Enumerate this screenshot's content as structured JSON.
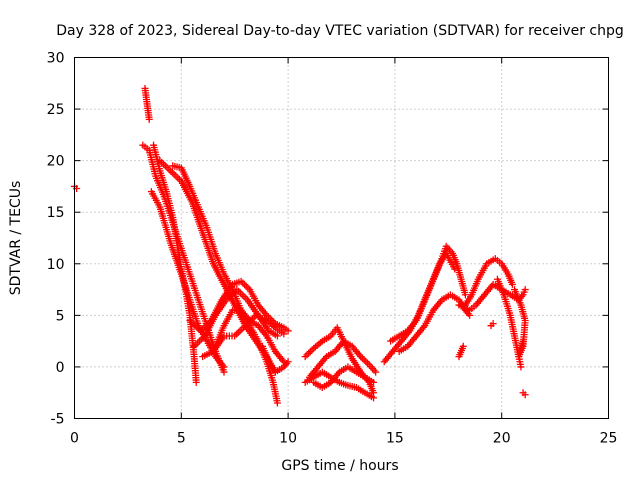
{
  "chart_data": {
    "type": "scatter",
    "title": "Day 328 of 2023, Sidereal Day-to-day VTEC variation (SDTVAR) for receiver chpg",
    "xlabel": "GPS time / hours",
    "ylabel": "SDTVAR / TECUs",
    "xlim": [
      0,
      25
    ],
    "ylim": [
      -5,
      30
    ],
    "xticks": [
      0,
      5,
      10,
      15,
      20,
      25
    ],
    "yticks": [
      -5,
      0,
      5,
      10,
      15,
      20,
      25,
      30
    ],
    "grid": true,
    "marker": "plus",
    "color": "#ff0000",
    "series": [
      {
        "name": "sdtvar",
        "traces": [
          [
            [
              0.0,
              17.5
            ],
            [
              0.1,
              17.3
            ]
          ],
          [
            [
              3.3,
              27.0
            ],
            [
              3.4,
              25.5
            ],
            [
              3.5,
              24.0
            ]
          ],
          [
            [
              3.2,
              21.5
            ],
            [
              3.5,
              21.0
            ],
            [
              3.8,
              18.5
            ],
            [
              4.2,
              16.5
            ],
            [
              4.6,
              14.0
            ],
            [
              5.0,
              11.5
            ],
            [
              5.4,
              9.0
            ],
            [
              5.8,
              6.5
            ],
            [
              6.2,
              4.0
            ],
            [
              6.6,
              1.5
            ],
            [
              7.0,
              -0.5
            ]
          ],
          [
            [
              3.7,
              21.5
            ],
            [
              4.0,
              19.0
            ],
            [
              4.3,
              17.0
            ],
            [
              4.6,
              14.5
            ],
            [
              4.8,
              12.0
            ],
            [
              5.0,
              9.5
            ],
            [
              5.2,
              7.5
            ],
            [
              5.4,
              5.0
            ],
            [
              5.5,
              3.0
            ],
            [
              5.6,
              1.0
            ],
            [
              5.7,
              -1.5
            ]
          ],
          [
            [
              4.0,
              20.0
            ],
            [
              4.5,
              19.0
            ],
            [
              5.0,
              18.0
            ],
            [
              5.5,
              16.0
            ],
            [
              6.0,
              13.0
            ],
            [
              6.5,
              10.0
            ],
            [
              7.0,
              8.0
            ],
            [
              7.5,
              6.0
            ],
            [
              8.0,
              4.0
            ],
            [
              8.5,
              2.5
            ],
            [
              9.0,
              1.0
            ],
            [
              9.4,
              -0.5
            ]
          ],
          [
            [
              4.6,
              19.5
            ],
            [
              5.0,
              19.3
            ],
            [
              5.4,
              17.5
            ],
            [
              5.8,
              15.5
            ],
            [
              6.2,
              13.5
            ],
            [
              6.6,
              11.0
            ],
            [
              7.0,
              9.0
            ],
            [
              7.4,
              7.5
            ],
            [
              7.8,
              5.5
            ],
            [
              8.2,
              4.0
            ],
            [
              8.6,
              2.5
            ],
            [
              9.0,
              0.5
            ],
            [
              9.3,
              -1.5
            ],
            [
              9.5,
              -3.5
            ]
          ],
          [
            [
              3.6,
              17.0
            ],
            [
              4.0,
              15.5
            ],
            [
              4.5,
              12.0
            ],
            [
              5.0,
              9.0
            ],
            [
              5.4,
              6.5
            ],
            [
              5.8,
              4.0
            ],
            [
              6.2,
              2.5
            ],
            [
              6.6,
              1.0
            ],
            [
              7.0,
              0.0
            ]
          ],
          [
            [
              5.4,
              4.5
            ],
            [
              5.9,
              3.5
            ],
            [
              6.4,
              4.5
            ],
            [
              6.9,
              6.5
            ],
            [
              7.4,
              8.0
            ],
            [
              7.8,
              8.3
            ],
            [
              8.2,
              7.5
            ],
            [
              8.6,
              6.0
            ],
            [
              9.0,
              5.0
            ],
            [
              9.4,
              4.2
            ],
            [
              9.8,
              3.8
            ],
            [
              10.0,
              3.5
            ]
          ],
          [
            [
              5.6,
              2.0
            ],
            [
              6.1,
              3.0
            ],
            [
              6.6,
              5.0
            ],
            [
              7.1,
              6.5
            ],
            [
              7.6,
              7.5
            ],
            [
              8.1,
              6.5
            ],
            [
              8.6,
              5.0
            ],
            [
              9.1,
              3.5
            ],
            [
              9.5,
              3.0
            ]
          ],
          [
            [
              6.0,
              1.0
            ],
            [
              6.5,
              1.5
            ],
            [
              7.0,
              3.0
            ],
            [
              7.5,
              3.0
            ],
            [
              8.0,
              4.0
            ],
            [
              8.5,
              5.0
            ],
            [
              9.0,
              4.5
            ],
            [
              9.4,
              3.8
            ],
            [
              9.8,
              3.2
            ]
          ],
          [
            [
              6.6,
              2.0
            ],
            [
              7.0,
              4.0
            ],
            [
              7.4,
              5.5
            ],
            [
              7.8,
              5.5
            ],
            [
              8.2,
              4.5
            ],
            [
              8.6,
              4.0
            ],
            [
              9.0,
              3.0
            ],
            [
              9.4,
              1.5
            ],
            [
              9.8,
              0.5
            ]
          ],
          [
            [
              8.8,
              2.0
            ],
            [
              9.1,
              0.5
            ],
            [
              9.4,
              -0.5
            ],
            [
              9.8,
              0.0
            ],
            [
              10.0,
              0.5
            ]
          ],
          [
            [
              10.8,
              1.0
            ],
            [
              11.2,
              1.8
            ],
            [
              11.6,
              2.5
            ],
            [
              12.0,
              3.0
            ],
            [
              12.3,
              3.8
            ],
            [
              12.6,
              2.5
            ],
            [
              13.0,
              0.8
            ],
            [
              13.4,
              -0.5
            ],
            [
              13.8,
              -1.5
            ],
            [
              14.0,
              -2.5
            ]
          ],
          [
            [
              11.0,
              -1.0
            ],
            [
              11.4,
              0.0
            ],
            [
              11.8,
              1.0
            ],
            [
              12.2,
              1.5
            ],
            [
              12.6,
              2.5
            ],
            [
              13.0,
              2.0
            ],
            [
              13.4,
              1.0
            ],
            [
              13.8,
              0.2
            ],
            [
              14.1,
              -0.5
            ]
          ],
          [
            [
              10.8,
              -1.5
            ],
            [
              11.2,
              -1.0
            ],
            [
              11.6,
              -0.5
            ],
            [
              12.0,
              -1.0
            ],
            [
              12.4,
              -1.5
            ],
            [
              12.8,
              -1.8
            ],
            [
              13.2,
              -2.0
            ],
            [
              13.6,
              -2.5
            ],
            [
              14.0,
              -3.0
            ]
          ],
          [
            [
              11.2,
              -1.5
            ],
            [
              11.6,
              -2.0
            ],
            [
              12.0,
              -1.5
            ],
            [
              12.4,
              -0.5
            ],
            [
              12.8,
              0.0
            ],
            [
              13.2,
              -0.5
            ],
            [
              13.6,
              -1.0
            ],
            [
              14.0,
              -1.5
            ]
          ],
          [
            [
              14.5,
              0.5
            ],
            [
              14.9,
              1.5
            ],
            [
              15.3,
              2.5
            ],
            [
              15.7,
              3.5
            ],
            [
              16.1,
              5.0
            ],
            [
              16.5,
              7.0
            ],
            [
              16.9,
              9.0
            ],
            [
              17.2,
              10.5
            ],
            [
              17.4,
              11.7
            ],
            [
              17.7,
              11.0
            ],
            [
              17.9,
              10.0
            ],
            [
              18.1,
              8.5
            ],
            [
              18.3,
              7.0
            ]
          ],
          [
            [
              14.8,
              2.5
            ],
            [
              15.2,
              3.0
            ],
            [
              15.6,
              3.5
            ],
            [
              16.0,
              4.5
            ],
            [
              16.4,
              6.5
            ],
            [
              16.8,
              8.5
            ],
            [
              17.1,
              10.0
            ],
            [
              17.4,
              11.0
            ],
            [
              17.8,
              9.5
            ]
          ],
          [
            [
              15.2,
              1.5
            ],
            [
              15.6,
              2.0
            ],
            [
              16.0,
              3.0
            ],
            [
              16.4,
              4.0
            ],
            [
              16.8,
              5.5
            ],
            [
              17.2,
              6.5
            ],
            [
              17.6,
              7.0
            ],
            [
              18.0,
              6.5
            ],
            [
              18.3,
              5.5
            ],
            [
              18.5,
              5.0
            ]
          ],
          [
            [
              18.0,
              6.0
            ],
            [
              18.5,
              5.5
            ],
            [
              18.8,
              6.0
            ],
            [
              19.2,
              7.0
            ],
            [
              19.6,
              8.0
            ],
            [
              20.0,
              7.5
            ],
            [
              20.4,
              7.0
            ],
            [
              20.8,
              6.5
            ],
            [
              21.0,
              7.0
            ],
            [
              21.1,
              7.5
            ]
          ],
          [
            [
              18.3,
              6.0
            ],
            [
              18.6,
              7.0
            ],
            [
              18.9,
              8.5
            ],
            [
              19.3,
              10.0
            ],
            [
              19.7,
              10.5
            ],
            [
              20.0,
              10.0
            ],
            [
              20.3,
              9.0
            ],
            [
              20.5,
              8.0
            ]
          ],
          [
            [
              19.8,
              8.5
            ],
            [
              20.1,
              7.0
            ],
            [
              20.4,
              5.0
            ],
            [
              20.6,
              3.0
            ],
            [
              20.8,
              1.0
            ],
            [
              20.9,
              0.0
            ]
          ],
          [
            [
              20.6,
              7.5
            ],
            [
              20.9,
              6.0
            ],
            [
              21.1,
              4.5
            ],
            [
              21.0,
              2.0
            ],
            [
              20.8,
              1.0
            ],
            [
              21.0,
              2.5
            ]
          ],
          [
            [
              19.5,
              4.0
            ],
            [
              19.6,
              4.2
            ]
          ],
          [
            [
              18.0,
              1.0
            ],
            [
              18.2,
              2.0
            ]
          ],
          [
            [
              21.0,
              -2.5
            ],
            [
              21.1,
              -2.7
            ]
          ]
        ]
      }
    ]
  }
}
